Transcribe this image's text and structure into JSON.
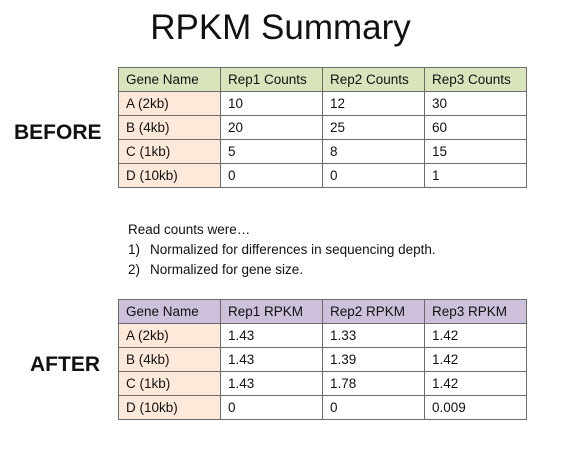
{
  "title": "RPKM Summary",
  "before": {
    "label": "BEFORE",
    "headers": [
      "Gene Name",
      "Rep1 Counts",
      "Rep2 Counts",
      "Rep3 Counts"
    ],
    "rows": [
      [
        "A (2kb)",
        "10",
        "12",
        "30"
      ],
      [
        "B (4kb)",
        "20",
        "25",
        "60"
      ],
      [
        "C (1kb)",
        "5",
        "8",
        "15"
      ],
      [
        "D (10kb)",
        "0",
        "0",
        "1"
      ]
    ]
  },
  "notes": {
    "intro": "Read counts were…",
    "items": [
      {
        "num": "1)",
        "text": "Normalized for differences in sequencing depth."
      },
      {
        "num": "2)",
        "text": "Normalized for gene size."
      }
    ]
  },
  "after": {
    "label": "AFTER",
    "headers": [
      "Gene Name",
      "Rep1 RPKM",
      "Rep2 RPKM",
      "Rep3 RPKM"
    ],
    "rows": [
      [
        "A (2kb)",
        "1.43",
        "1.33",
        "1.42"
      ],
      [
        "B (4kb)",
        "1.43",
        "1.39",
        "1.42"
      ],
      [
        "C (1kb)",
        "1.43",
        "1.78",
        "1.42"
      ],
      [
        "D (10kb)",
        "0",
        "0",
        "0.009"
      ]
    ]
  },
  "colors": {
    "before_header": "#d8e4bc",
    "after_header": "#ccc0da",
    "gene_column": "#fde9d9",
    "border": "#6b6b6b"
  }
}
